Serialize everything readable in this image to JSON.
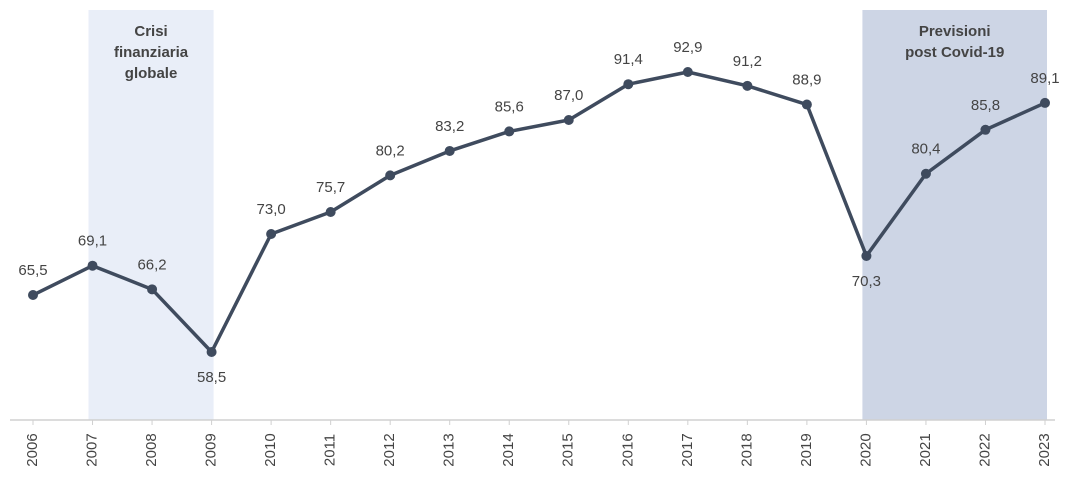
{
  "chart_data": {
    "type": "line",
    "categories": [
      "2006",
      "2007",
      "2008",
      "2009",
      "2010",
      "2011",
      "2012",
      "2013",
      "2014",
      "2015",
      "2016",
      "2017",
      "2018",
      "2019",
      "2020",
      "2021",
      "2022",
      "2023"
    ],
    "series": [
      {
        "color": "#3f4b5e",
        "values": [
          65.5,
          69.1,
          66.2,
          58.5,
          73.0,
          75.7,
          80.2,
          83.2,
          85.6,
          87.0,
          91.4,
          92.9,
          91.2,
          88.9,
          70.3,
          80.4,
          85.8,
          89.1
        ],
        "value_labels": [
          "65,5",
          "69,1",
          "66,2",
          "58,5",
          "73,0",
          "75,7",
          "80,2",
          "83,2",
          "85,6",
          "87,0",
          "91,4",
          "92,9",
          "91,2",
          "88,9",
          "70,3",
          "80,4",
          "85,8",
          "89,1"
        ]
      }
    ],
    "regions": [
      {
        "start": "2007",
        "end": "2009",
        "color": "#e9eef8",
        "lines": [
          "Crisi",
          "finanziaria",
          "globale"
        ]
      },
      {
        "start": "2020",
        "end": "2023",
        "color": "#cdd5e5",
        "lines": [
          "Previsioni",
          "post Covid-19"
        ]
      }
    ]
  }
}
